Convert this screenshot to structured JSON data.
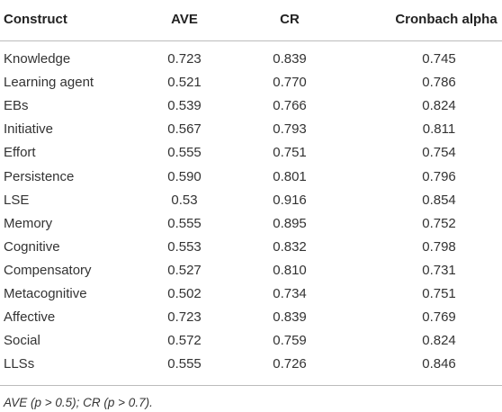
{
  "table": {
    "header": [
      "Construct",
      "AVE",
      "CR",
      "Cronbach alpha"
    ],
    "rows": [
      [
        "Knowledge",
        "0.723",
        "0.839",
        "0.745"
      ],
      [
        "Learning agent",
        "0.521",
        "0.770",
        "0.786"
      ],
      [
        "EBs",
        "0.539",
        "0.766",
        "0.824"
      ],
      [
        "Initiative",
        "0.567",
        "0.793",
        "0.811"
      ],
      [
        "Effort",
        "0.555",
        "0.751",
        "0.754"
      ],
      [
        "Persistence",
        "0.590",
        "0.801",
        "0.796"
      ],
      [
        "LSE",
        "0.53",
        "0.916",
        "0.854"
      ],
      [
        "Memory",
        "0.555",
        "0.895",
        "0.752"
      ],
      [
        "Cognitive",
        "0.553",
        "0.832",
        "0.798"
      ],
      [
        "Compensatory",
        "0.527",
        "0.810",
        "0.731"
      ],
      [
        "Metacognitive",
        "0.502",
        "0.734",
        "0.751"
      ],
      [
        "Affective",
        "0.723",
        "0.839",
        "0.769"
      ],
      [
        "Social",
        "0.572",
        "0.759",
        "0.824"
      ],
      [
        "LLSs",
        "0.555",
        "0.726",
        "0.846"
      ]
    ],
    "footnote": "AVE (p > 0.5); CR (p > 0.7)."
  }
}
